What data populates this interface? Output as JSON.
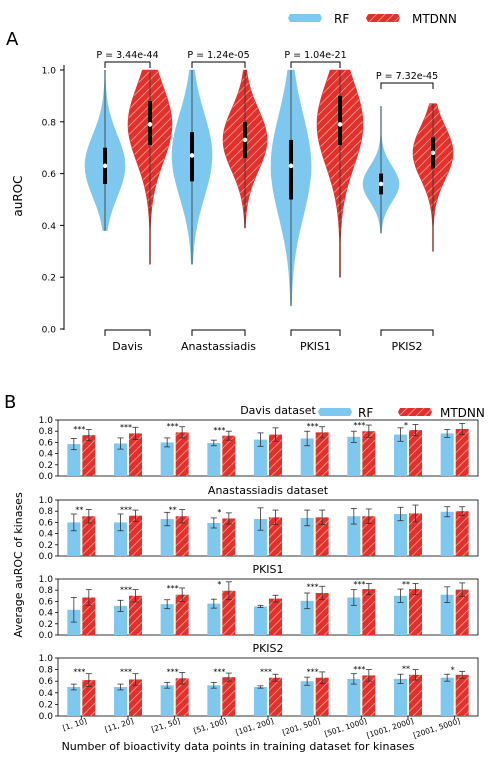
{
  "colors": {
    "rf": "#7ec8f0",
    "mtdnn": "#e2312c",
    "hatch": "#f4b1a6",
    "axis": "#000000"
  },
  "chart_data": [
    {
      "id": "A",
      "panel_label": "A",
      "type": "violin",
      "ylabel": "auROC",
      "ylim": [
        0.0,
        1.0
      ],
      "yticks": [
        "0.0",
        "0.2",
        "0.4",
        "0.6",
        "0.8",
        "1.0"
      ],
      "legend": {
        "position": "top-right",
        "entries": [
          "RF",
          "MTDNN"
        ]
      },
      "categories": [
        "Davis",
        "Anastassiadis",
        "PKIS1",
        "PKIS2"
      ],
      "p_values": [
        "P = 3.44e-44",
        "P = 1.24e-05",
        "P = 1.04e-21",
        "P = 7.32e-45"
      ],
      "series": [
        {
          "name": "RF",
          "medians": [
            0.63,
            0.67,
            0.63,
            0.56
          ],
          "q1": [
            0.56,
            0.57,
            0.5,
            0.52
          ],
          "q3": [
            0.7,
            0.76,
            0.73,
            0.6
          ],
          "min": [
            0.38,
            0.25,
            0.09,
            0.37
          ],
          "max": [
            1.0,
            1.0,
            1.0,
            0.86
          ]
        },
        {
          "name": "MTDNN",
          "medians": [
            0.79,
            0.73,
            0.79,
            0.68
          ],
          "q1": [
            0.71,
            0.66,
            0.71,
            0.62
          ],
          "q3": [
            0.88,
            0.8,
            0.9,
            0.74
          ],
          "min": [
            0.25,
            0.39,
            0.2,
            0.3
          ],
          "max": [
            1.0,
            1.0,
            1.0,
            0.87
          ]
        }
      ]
    },
    {
      "id": "B",
      "panel_label": "B",
      "type": "bar",
      "ylabel": "Average auROC of kinases",
      "xlabel": "Number of bioactivity data points in training dataset for kinases",
      "categories": [
        "[1, 10]",
        "[11, 20]",
        "[21, 50]",
        "[51, 100]",
        "[101, 200]",
        "[201, 500]",
        "[501, 1000]",
        "[1001, 2000]",
        "[2001, 5000]"
      ],
      "yticks": [
        "0.0",
        "0.2",
        "0.4",
        "0.6",
        "0.8",
        "1.0"
      ],
      "ylim": [
        0.0,
        1.0
      ],
      "legend": {
        "position": "top-right",
        "entries": [
          "RF",
          "MTDNN"
        ]
      },
      "subplots": [
        {
          "title": "Davis dataset",
          "significance": [
            "***",
            "***",
            "***",
            "***",
            "",
            "***",
            "***",
            "*",
            ""
          ],
          "series": [
            {
              "name": "RF",
              "values": [
                0.57,
                0.58,
                0.6,
                0.59,
                0.65,
                0.67,
                0.7,
                0.74,
                0.76
              ],
              "errors": [
                0.1,
                0.1,
                0.08,
                0.05,
                0.12,
                0.13,
                0.1,
                0.12,
                0.07
              ]
            },
            {
              "name": "MTDNN",
              "values": [
                0.73,
                0.76,
                0.78,
                0.72,
                0.74,
                0.78,
                0.8,
                0.82,
                0.84
              ],
              "errors": [
                0.1,
                0.11,
                0.1,
                0.08,
                0.12,
                0.1,
                0.11,
                0.1,
                0.1
              ]
            }
          ]
        },
        {
          "title": "Anastassiadis dataset",
          "significance": [
            "**",
            "***",
            "**",
            "*",
            "",
            "",
            "",
            "",
            ""
          ],
          "series": [
            {
              "name": "RF",
              "values": [
                0.6,
                0.6,
                0.66,
                0.59,
                0.66,
                0.68,
                0.71,
                0.75,
                0.79
              ],
              "errors": [
                0.15,
                0.15,
                0.12,
                0.09,
                0.2,
                0.14,
                0.14,
                0.12,
                0.09
              ]
            },
            {
              "name": "MTDNN",
              "values": [
                0.71,
                0.72,
                0.71,
                0.67,
                0.69,
                0.69,
                0.71,
                0.76,
                0.8
              ],
              "errors": [
                0.12,
                0.1,
                0.12,
                0.1,
                0.13,
                0.13,
                0.13,
                0.15,
                0.08
              ]
            }
          ]
        },
        {
          "title": "PKIS1",
          "significance": [
            "",
            "***",
            "***",
            "*",
            "",
            "***",
            "***",
            "**",
            ""
          ],
          "series": [
            {
              "name": "RF",
              "values": [
                0.45,
                0.52,
                0.55,
                0.56,
                0.51,
                0.61,
                0.67,
                0.7,
                0.72
              ],
              "errors": [
                0.22,
                0.1,
                0.08,
                0.08,
                0.02,
                0.14,
                0.14,
                0.12,
                0.14
              ]
            },
            {
              "name": "MTDNN",
              "values": [
                0.67,
                0.7,
                0.72,
                0.79,
                0.65,
                0.75,
                0.82,
                0.82,
                0.81
              ],
              "errors": [
                0.14,
                0.11,
                0.12,
                0.16,
                0.06,
                0.12,
                0.1,
                0.1,
                0.12
              ]
            }
          ]
        },
        {
          "title": "PKIS2",
          "significance": [
            "***",
            "***",
            "***",
            "***",
            "***",
            "***",
            "***",
            "**",
            "*"
          ],
          "series": [
            {
              "name": "RF",
              "values": [
                0.5,
                0.5,
                0.53,
                0.53,
                0.5,
                0.6,
                0.64,
                0.64,
                0.66
              ],
              "errors": [
                0.05,
                0.05,
                0.05,
                0.05,
                0.02,
                0.07,
                0.09,
                0.08,
                0.06
              ]
            },
            {
              "name": "MTDNN",
              "values": [
                0.62,
                0.63,
                0.65,
                0.67,
                0.66,
                0.66,
                0.7,
                0.71,
                0.71
              ],
              "errors": [
                0.11,
                0.1,
                0.1,
                0.07,
                0.06,
                0.1,
                0.1,
                0.09,
                0.06
              ]
            }
          ]
        }
      ]
    }
  ]
}
